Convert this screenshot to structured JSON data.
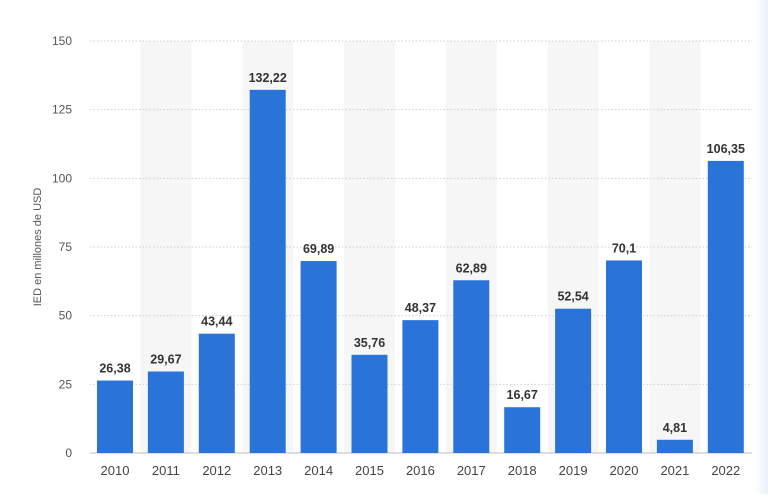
{
  "chart_data": {
    "type": "bar",
    "ylabel": "IED en millones de USD",
    "xlabel": "",
    "ylim": [
      0,
      150
    ],
    "yticks": [
      0,
      25,
      50,
      75,
      100,
      125,
      150
    ],
    "grid": true,
    "bar_color": "#2a74d9",
    "band_color": "#f6f6f6",
    "gridline_color": "#cfcfcf",
    "categories": [
      "2010",
      "2011",
      "2012",
      "2013",
      "2014",
      "2015",
      "2016",
      "2017",
      "2018",
      "2019",
      "2020",
      "2021",
      "2022"
    ],
    "values": [
      26.38,
      29.67,
      43.44,
      132.22,
      69.89,
      35.76,
      48.37,
      62.89,
      16.67,
      52.54,
      70.1,
      4.81,
      106.35
    ],
    "value_labels": [
      "26,38",
      "29,67",
      "43,44",
      "132,22",
      "69,89",
      "35,76",
      "48,37",
      "62,89",
      "16,67",
      "52,54",
      "70,1",
      "4,81",
      "106,35"
    ]
  }
}
